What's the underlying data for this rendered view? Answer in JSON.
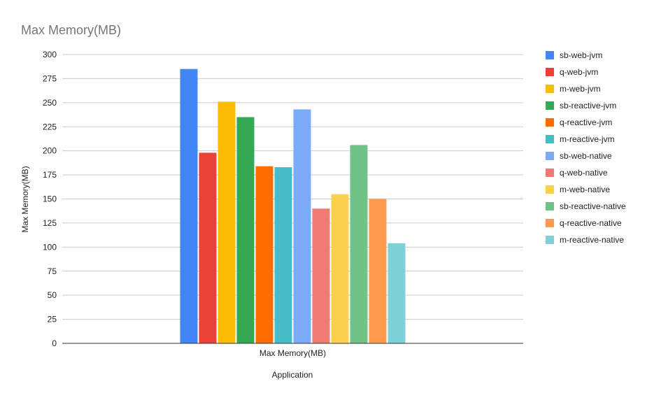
{
  "chart_data": {
    "type": "bar",
    "title": "Max Memory(MB)",
    "xlabel": "Application",
    "ylabel": "Max Memory(MB)",
    "categories": [
      "Max Memory(MB)"
    ],
    "ylim": [
      0,
      300
    ],
    "yticks": [
      0,
      25,
      50,
      75,
      100,
      125,
      150,
      175,
      200,
      225,
      250,
      275,
      300
    ],
    "grid": true,
    "legend_position": "right",
    "series": [
      {
        "name": "sb-web-jvm",
        "color": "#4285f4",
        "values": [
          285
        ]
      },
      {
        "name": "q-web-jvm",
        "color": "#ea4335",
        "values": [
          198
        ]
      },
      {
        "name": "m-web-jvm",
        "color": "#fbbc04",
        "values": [
          251
        ]
      },
      {
        "name": "sb-reactive-jvm",
        "color": "#34a853",
        "values": [
          235
        ]
      },
      {
        "name": "q-reactive-jvm",
        "color": "#ff6d01",
        "values": [
          184
        ]
      },
      {
        "name": "m-reactive-jvm",
        "color": "#46bdc6",
        "values": [
          183
        ]
      },
      {
        "name": "sb-web-native",
        "color": "#7baaf7",
        "values": [
          243
        ]
      },
      {
        "name": "q-web-native",
        "color": "#f07b72",
        "values": [
          140
        ]
      },
      {
        "name": "m-web-native",
        "color": "#fcd04f",
        "values": [
          155
        ]
      },
      {
        "name": "sb-reactive-native",
        "color": "#71c287",
        "values": [
          206
        ]
      },
      {
        "name": "q-reactive-native",
        "color": "#ff994d",
        "values": [
          150
        ]
      },
      {
        "name": "m-reactive-native",
        "color": "#7ed1d7",
        "values": [
          104
        ]
      }
    ]
  }
}
